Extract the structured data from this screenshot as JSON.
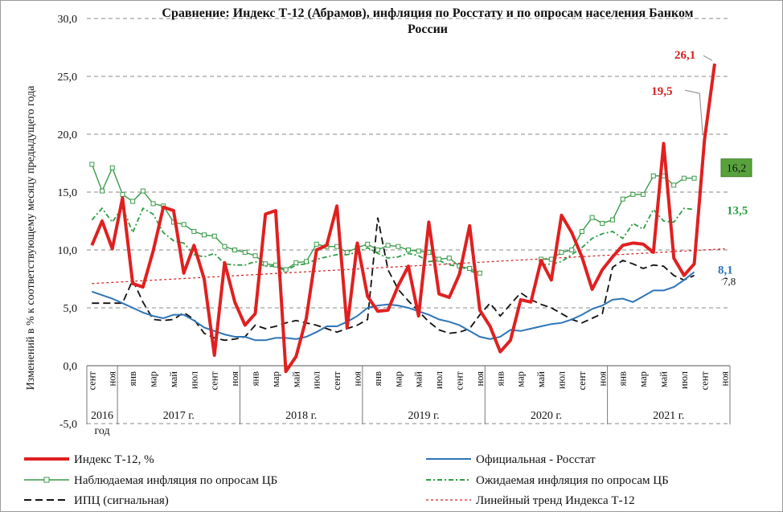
{
  "chart_data": {
    "type": "line",
    "title": "Сравнение: Индекс Т-12 (Абрамов), инфляция по Росстату и по опросам населения Банком России",
    "title_lines": [
      "Сравнение: Индекс Т-12 (Абрамов), инфляция по Росстату и по опросам населения Банком",
      "России"
    ],
    "ylabel": "Изменений в % к соответствующему месяцу предыдущего года",
    "ylim": [
      -5,
      30
    ],
    "yticks": [
      -5,
      0,
      5,
      10,
      15,
      20,
      25,
      30
    ],
    "ytick_labels": [
      "-5,0",
      "0,0",
      "5,0",
      "10,0",
      "15,0",
      "20,0",
      "25,0",
      "30,0"
    ],
    "grid": true,
    "month_labels": [
      "сент",
      "ноя",
      "янв",
      "мар",
      "май",
      "июл",
      "сент",
      "ноя",
      "янв",
      "мар",
      "май",
      "июл",
      "сент",
      "ноя",
      "янв",
      "мар",
      "май",
      "июл",
      "сент",
      "ноя",
      "янв",
      "мар",
      "май",
      "июл",
      "сент",
      "ноя",
      "янв",
      "мар",
      "май",
      "июл",
      "сент",
      "ноя"
    ],
    "year_labels": [
      "2016 год",
      "2017 г.",
      "2018 г.",
      "2019 г.",
      "2020 г.",
      "2021 г."
    ],
    "x_start": "2016-09",
    "n_months": 63,
    "series": [
      {
        "name": "Индекс Т-12, %",
        "key": "t12",
        "color": "#e02020",
        "style": "solid-thick",
        "values": [
          10.4,
          12.5,
          10.1,
          14.5,
          7.1,
          6.8,
          9.9,
          13.7,
          13.4,
          8.0,
          10.4,
          7.5,
          0.9,
          8.9,
          5.5,
          3.5,
          4.5,
          13.1,
          13.4,
          -0.5,
          0.8,
          4.1,
          10.0,
          10.4,
          13.8,
          3.3,
          10.6,
          6.0,
          4.7,
          4.8,
          6.9,
          8.6,
          4.3,
          12.4,
          6.2,
          5.9,
          7.9,
          12.1,
          4.8,
          3.4,
          1.2,
          2.2,
          5.7,
          5.5,
          9.1,
          7.4,
          13.0,
          11.5,
          9.4,
          6.6,
          8.3,
          9.4,
          10.4,
          10.6,
          10.5,
          9.8,
          19.2,
          9.3,
          7.8,
          8.8,
          19.5,
          26.1
        ]
      },
      {
        "name": "Официальная - Росстат",
        "key": "rosstat",
        "color": "#2e75b6",
        "style": "solid",
        "values": [
          6.4,
          6.1,
          5.8,
          5.4,
          5.0,
          4.6,
          4.3,
          4.1,
          4.4,
          4.4,
          3.9,
          3.3,
          3.0,
          2.7,
          2.5,
          2.5,
          2.2,
          2.2,
          2.4,
          2.4,
          2.3,
          2.5,
          2.9,
          3.4,
          3.4,
          3.8,
          4.3,
          5.0,
          5.2,
          5.3,
          5.2,
          5.0,
          4.7,
          4.4,
          4.0,
          3.8,
          3.5,
          3.0,
          2.5,
          2.3,
          2.5,
          3.1,
          3.0,
          3.2,
          3.4,
          3.6,
          3.7,
          4.0,
          4.4,
          4.9,
          5.2,
          5.7,
          5.8,
          5.5,
          6.0,
          6.5,
          6.5,
          6.8,
          7.4,
          8.1
        ]
      },
      {
        "name": "Наблюдаемая инфляция по опросам ЦБ",
        "key": "observed",
        "color": "#3a9a48",
        "style": "solid-markers",
        "values": [
          17.4,
          15.1,
          17.1,
          14.8,
          14.2,
          15.1,
          14.0,
          13.8,
          12.4,
          12.2,
          11.6,
          11.3,
          11.2,
          10.3,
          10.0,
          9.8,
          9.5,
          8.8,
          8.7,
          8.3,
          8.9,
          9.0,
          10.5,
          10.3,
          10.3,
          9.8,
          10.2,
          10.5,
          10.0,
          10.4,
          10.3,
          10.0,
          9.9,
          9.8,
          9.2,
          9.3,
          8.6,
          8.4,
          8.0,
          null,
          null,
          null,
          null,
          null,
          9.2,
          9.2,
          9.8,
          10.0,
          11.6,
          12.8,
          12.3,
          12.6,
          14.4,
          14.8,
          14.8,
          16.4,
          16.4,
          15.6,
          16.2,
          16.2
        ]
      },
      {
        "name": "Ожидаемая инфляция по опросам ЦБ",
        "key": "expected",
        "color": "#2e9e44",
        "style": "dash-dot",
        "values": [
          12.6,
          13.6,
          12.4,
          13.7,
          11.5,
          13.6,
          13.1,
          11.5,
          10.8,
          10.6,
          9.6,
          9.4,
          9.7,
          8.8,
          8.7,
          8.7,
          9.0,
          8.6,
          8.6,
          8.2,
          8.7,
          8.8,
          9.2,
          9.4,
          9.6,
          9.6,
          9.8,
          10.2,
          9.7,
          9.3,
          9.4,
          9.7,
          9.5,
          9.0,
          9.1,
          8.7,
          8.6,
          8.2,
          7.9,
          null,
          null,
          null,
          null,
          null,
          8.7,
          8.8,
          9.0,
          9.6,
          10.2,
          11.0,
          11.4,
          11.6,
          11.0,
          12.3,
          11.8,
          13.5,
          12.5,
          12.4,
          13.6,
          13.5
        ]
      },
      {
        "name": "ИПЦ (сигнальная)",
        "key": "ipc",
        "color": "#111111",
        "style": "dashed",
        "values": [
          5.4,
          5.4,
          5.4,
          5.4,
          7.4,
          5.5,
          4.0,
          3.9,
          4.0,
          4.6,
          4.0,
          2.8,
          2.4,
          2.2,
          2.3,
          2.5,
          3.5,
          3.2,
          3.4,
          3.7,
          3.9,
          3.7,
          3.5,
          3.2,
          2.9,
          3.2,
          3.5,
          4.0,
          12.8,
          8.3,
          6.6,
          5.6,
          4.7,
          3.8,
          3.1,
          2.8,
          2.9,
          3.2,
          4.4,
          5.4,
          4.3,
          5.3,
          6.3,
          5.7,
          5.3,
          5.0,
          4.5,
          4.0,
          3.7,
          4.1,
          4.5,
          8.5,
          9.1,
          8.8,
          8.4,
          8.7,
          8.6,
          7.8,
          7.4,
          7.8
        ]
      },
      {
        "name": "Линейный тренд Индекса Т-12",
        "key": "trend",
        "color": "#d02020",
        "style": "dotted",
        "values": [
          7.1,
          10.1
        ]
      }
    ],
    "annotations": [
      {
        "text": "26,1",
        "color": "#d62020"
      },
      {
        "text": "19,5",
        "color": "#d62020"
      },
      {
        "text": "16,2",
        "color": "#111111",
        "box_color": "#58a23c"
      },
      {
        "text": "13,5",
        "color": "#2e9e44"
      },
      {
        "text": "8,1",
        "color": "#2e75b6"
      },
      {
        "text": "7,8",
        "color": "#111111"
      }
    ],
    "legend": [
      {
        "label": "Индекс Т-12, %",
        "key": "t12"
      },
      {
        "label": "Официальная - Росстат",
        "key": "rosstat"
      },
      {
        "label": "Наблюдаемая  инфляция по опросам ЦБ",
        "key": "observed"
      },
      {
        "label": "Ожидаемая инфляция по опросам ЦБ",
        "key": "expected"
      },
      {
        "label": "ИПЦ (сигнальная)",
        "key": "ipc"
      },
      {
        "label": "Линейный тренд Индекса Т-12",
        "key": "trend"
      }
    ],
    "legend_position": "bottom"
  }
}
